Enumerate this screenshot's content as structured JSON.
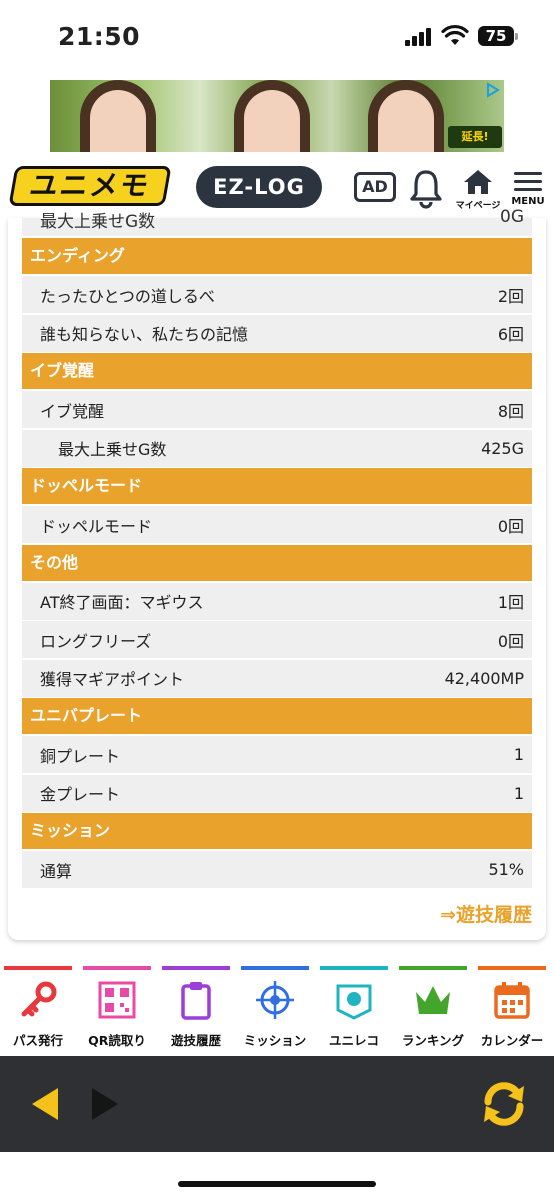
{
  "status_bar": {
    "time": "21:50",
    "battery": "75"
  },
  "header": {
    "logo_text": "ユニメモ",
    "ezlog_label": "EZ-LOG",
    "ad_label": "AD",
    "mypage_label": "マイページ",
    "menu_label": "MENU"
  },
  "ad_banner": {
    "badge_text": "延長!"
  },
  "partial_row": {
    "label": "最大上乗せG数",
    "value": "0G"
  },
  "sections": [
    {
      "title": "エンディング",
      "rows": [
        {
          "label": "たったひとつの道しるべ",
          "value": "2回"
        },
        {
          "label": "誰も知らない、私たちの記憶",
          "value": "6回"
        }
      ]
    },
    {
      "title": "イブ覚醒",
      "rows": [
        {
          "label": "イブ覚醒",
          "value": "8回"
        },
        {
          "label": "最大上乗せG数",
          "value": "425G"
        }
      ]
    },
    {
      "title": "ドッペルモード",
      "rows": [
        {
          "label": "ドッペルモード",
          "value": "0回"
        }
      ]
    },
    {
      "title": "その他",
      "rows": [
        {
          "label": "AT終了画面：マギウス",
          "value": "1回"
        },
        {
          "label": "ロングフリーズ",
          "value": "0回"
        },
        {
          "label": "獲得マギアポイント",
          "value": "42,400MP"
        }
      ]
    },
    {
      "title": "ユニバプレート",
      "rows": [
        {
          "label": "銅プレート",
          "value": "1"
        },
        {
          "label": "金プレート",
          "value": "1"
        }
      ]
    },
    {
      "title": "ミッション",
      "rows": [
        {
          "label": "通算",
          "value": "51%"
        }
      ]
    }
  ],
  "history_link": "⇒遊技履歴",
  "bottom_nav": [
    {
      "label": "パス発行",
      "icon": "key-icon",
      "color": "#e8383d"
    },
    {
      "label": "QR読取り",
      "icon": "qr-code-icon",
      "color": "#e84aa8"
    },
    {
      "label": "遊技履歴",
      "icon": "clipboard-icon",
      "color": "#9b3fd6"
    },
    {
      "label": "ミッション",
      "icon": "target-icon",
      "color": "#2f6fe0"
    },
    {
      "label": "ユニレコ",
      "icon": "unireco-logo-icon",
      "color": "#1fb5c0"
    },
    {
      "label": "ランキング",
      "icon": "crown-icon",
      "color": "#44a52c"
    },
    {
      "label": "カレンダー",
      "icon": "calendar-icon",
      "color": "#ec6a1e"
    }
  ],
  "colors": {
    "accent": "#e9a22c",
    "row_bg": "#efefef",
    "toolbar": "#2f3033",
    "toolbar_icon": "#f5c21b"
  }
}
